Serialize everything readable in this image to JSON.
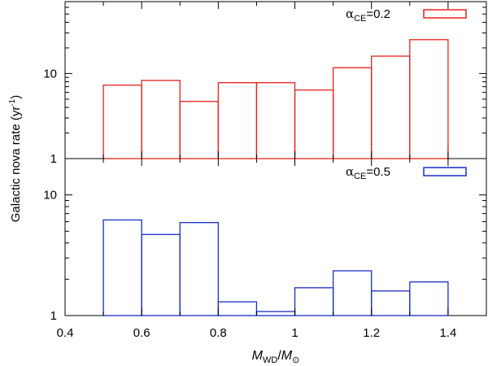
{
  "chart_data": {
    "type": "bar",
    "shared_x": {
      "label_main": "M",
      "label_main_sub": "WD",
      "label_sep": "/",
      "label_denom": "M",
      "label_denom_sub": "⊙",
      "range": [
        0.4,
        1.5
      ],
      "ticks": [
        0.4,
        0.6,
        0.8,
        1.0,
        1.2,
        1.4
      ],
      "tick_labels": [
        "0.4",
        "0.6",
        "0.8",
        "1",
        "1.2",
        "1.4"
      ],
      "minor_ticks": [
        0.5,
        0.7,
        0.9,
        1.1,
        1.3
      ],
      "bin_edges": [
        0.5,
        0.6,
        0.7,
        0.8,
        0.9,
        1.0,
        1.1,
        1.2,
        1.3,
        1.4
      ]
    },
    "ylabel": "Galactic nova rate (yr",
    "ylabel_sup": "-1",
    "ylabel_end": ")",
    "panels": [
      {
        "name": "top",
        "yscale": "log",
        "ylim": [
          1,
          70
        ],
        "ytick_values": [
          1,
          10
        ],
        "ytick_labels": [
          "1",
          "10"
        ],
        "legend": {
          "alpha": "α",
          "sub": "CE",
          "text": "=0.2",
          "color": "#e8221a",
          "position": "top-right"
        },
        "color": "#e8221a",
        "values": [
          7.3,
          8.3,
          4.7,
          7.8,
          7.8,
          6.4,
          11.7,
          16.0,
          25.0
        ]
      },
      {
        "name": "bottom",
        "yscale": "log",
        "ylim": [
          1,
          20
        ],
        "ytick_values": [
          1,
          10
        ],
        "ytick_labels": [
          "1",
          "10"
        ],
        "legend": {
          "alpha": "α",
          "sub": "CE",
          "text": "=0.5",
          "color": "#1a2ec8",
          "position": "top-right"
        },
        "color": "#1a2ec8",
        "values": [
          6.2,
          4.7,
          5.9,
          1.3,
          1.08,
          1.7,
          2.35,
          1.6,
          1.9
        ]
      }
    ]
  }
}
